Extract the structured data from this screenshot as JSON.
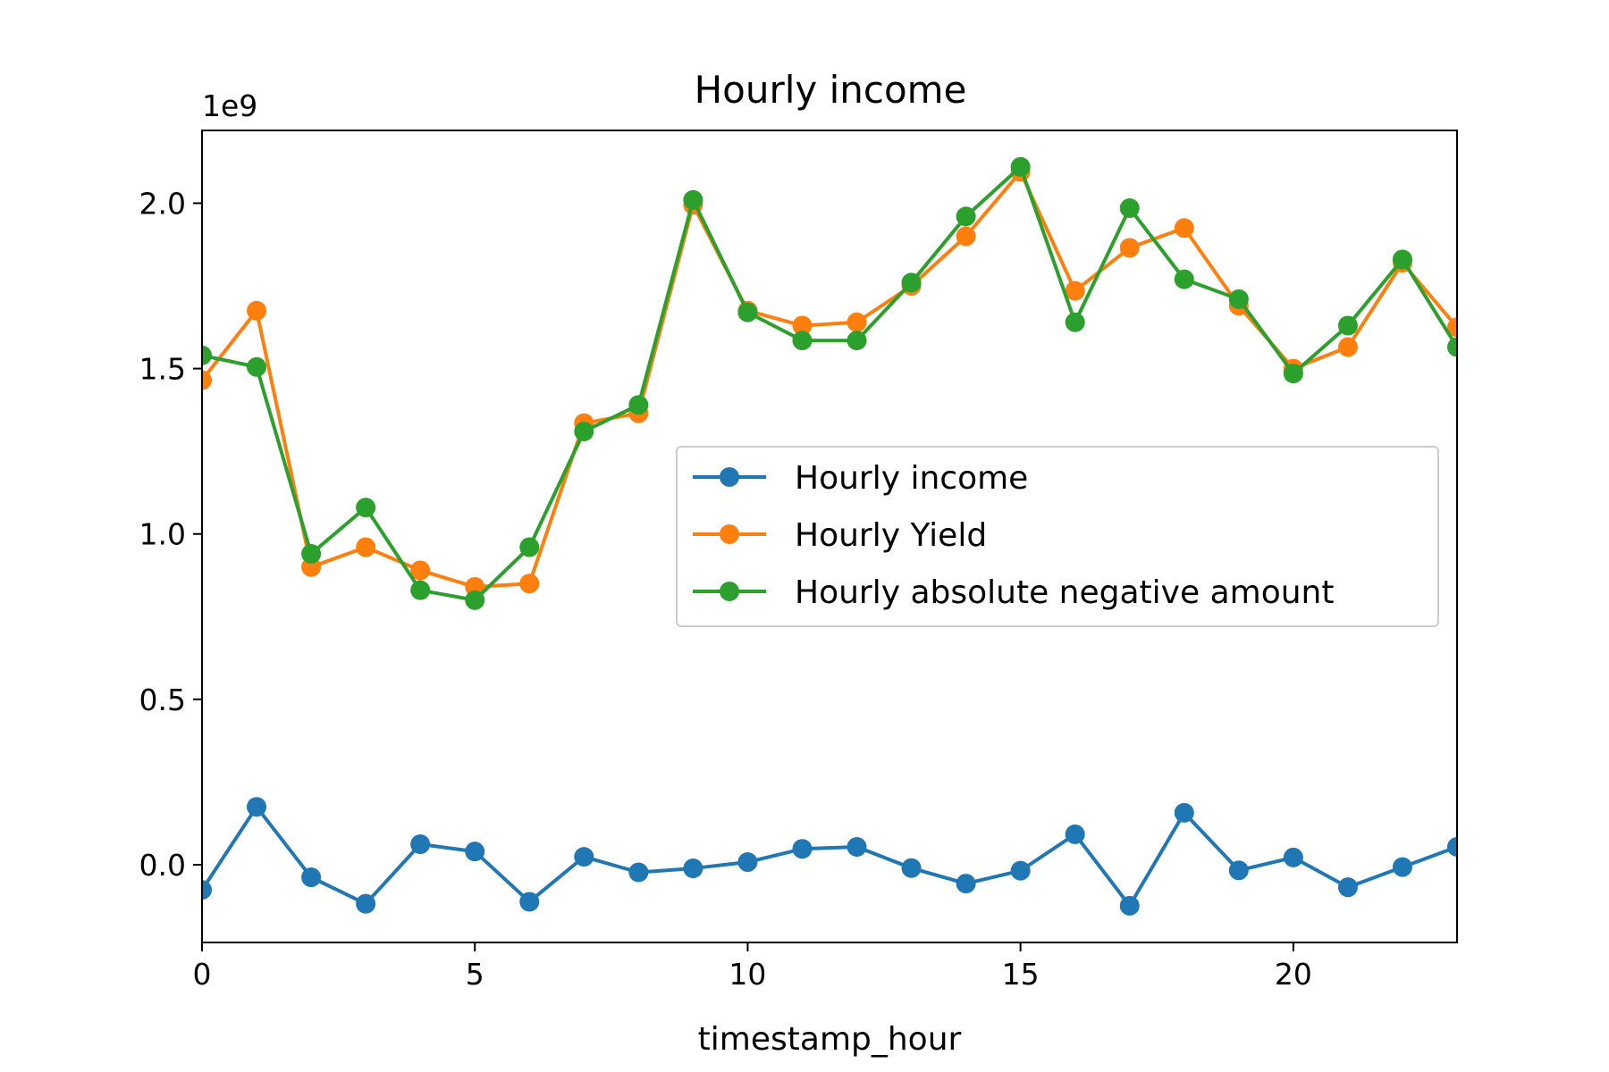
{
  "chart_data": {
    "type": "line",
    "title": "Hourly income",
    "xlabel": "timestamp_hour",
    "ylabel": "",
    "y_offset_label": "1e9",
    "x": [
      0,
      1,
      2,
      3,
      4,
      5,
      6,
      7,
      8,
      9,
      10,
      11,
      12,
      13,
      14,
      15,
      16,
      17,
      18,
      19,
      20,
      21,
      22,
      23
    ],
    "xlim": [
      0,
      23
    ],
    "ylim": [
      -0.235,
      2.22
    ],
    "x_ticks": [
      0,
      5,
      10,
      15,
      20
    ],
    "x_tick_labels": [
      "0",
      "5",
      "10",
      "15",
      "20"
    ],
    "y_ticks": [
      0.0,
      0.5,
      1.0,
      1.5,
      2.0
    ],
    "y_tick_labels": [
      "0.0",
      "0.5",
      "1.0",
      "1.5",
      "2.0"
    ],
    "grid": false,
    "legend_position": "center-right",
    "series": [
      {
        "name": "Hourly income",
        "color": "#1f77b4",
        "values": [
          -0.076,
          0.175,
          -0.038,
          -0.118,
          0.062,
          0.04,
          -0.112,
          0.024,
          -0.023,
          -0.011,
          0.008,
          0.048,
          0.054,
          -0.01,
          -0.057,
          -0.018,
          0.092,
          -0.124,
          0.157,
          -0.017,
          0.022,
          -0.068,
          -0.007,
          0.054
        ]
      },
      {
        "name": "Hourly Yield",
        "color": "#ff7f0e",
        "values": [
          1.465,
          1.675,
          0.9,
          0.96,
          0.89,
          0.84,
          0.85,
          1.335,
          1.365,
          1.995,
          1.675,
          1.63,
          1.64,
          1.75,
          1.9,
          2.095,
          1.735,
          1.865,
          1.925,
          1.69,
          1.5,
          1.565,
          1.82,
          1.625
        ]
      },
      {
        "name": "Hourly absolute negative amount",
        "color": "#2ca02c",
        "values": [
          1.54,
          1.505,
          0.94,
          1.08,
          0.83,
          0.8,
          0.96,
          1.31,
          1.39,
          2.01,
          1.67,
          1.585,
          1.585,
          1.76,
          1.96,
          2.11,
          1.64,
          1.985,
          1.77,
          1.71,
          1.485,
          1.63,
          1.83,
          1.565
        ]
      }
    ]
  }
}
